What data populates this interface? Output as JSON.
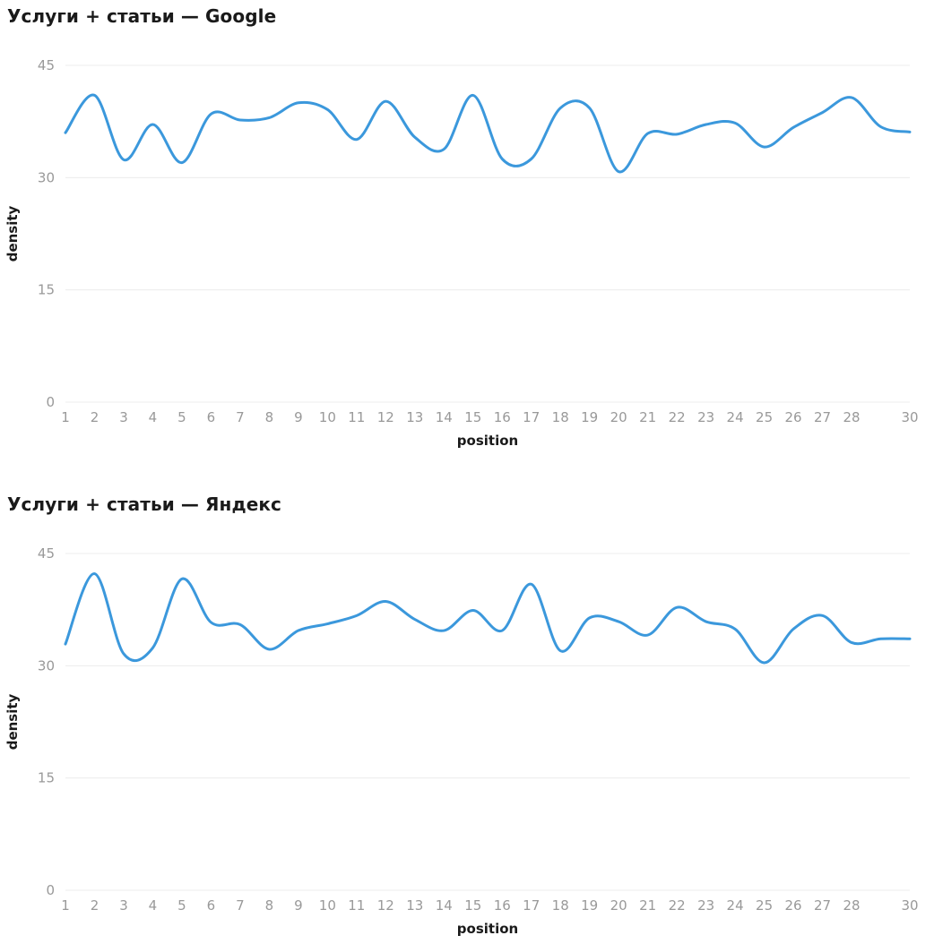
{
  "charts": [
    {
      "title": "Услуги + статьи — Google",
      "chart_data": {
        "type": "line",
        "title": "Услуги + статьи — Google",
        "xlabel": "position",
        "ylabel": "density",
        "x": [
          1,
          2,
          3,
          4,
          5,
          6,
          7,
          8,
          9,
          10,
          11,
          12,
          13,
          14,
          15,
          16,
          17,
          18,
          19,
          20,
          21,
          22,
          23,
          24,
          25,
          26,
          27,
          28,
          29,
          30
        ],
        "x_tick_labels": [
          "1",
          "2",
          "3",
          "4",
          "5",
          "6",
          "7",
          "8",
          "9",
          "10",
          "11",
          "12",
          "13",
          "14",
          "15",
          "16",
          "17",
          "18",
          "19",
          "20",
          "21",
          "22",
          "23",
          "24",
          "25",
          "26",
          "27",
          "28",
          "30"
        ],
        "x_tick_values": [
          1,
          2,
          3,
          4,
          5,
          6,
          7,
          8,
          9,
          10,
          11,
          12,
          13,
          14,
          15,
          16,
          17,
          18,
          19,
          20,
          21,
          22,
          23,
          24,
          25,
          26,
          27,
          28,
          30
        ],
        "y_ticks": [
          0,
          15,
          30,
          45
        ],
        "ylim": [
          0,
          45
        ],
        "xlim": [
          1,
          30
        ],
        "grid": true,
        "series": [
          {
            "color": "#3b98dc",
            "values": [
              36.0,
              41.0,
              32.4,
              37.1,
              32.0,
              38.5,
              37.7,
              38.0,
              40.0,
              39.1,
              35.1,
              40.2,
              35.4,
              33.8,
              41.0,
              32.5,
              32.5,
              39.3,
              39.3,
              30.8,
              35.9,
              35.8,
              37.1,
              37.3,
              34.1,
              36.7,
              38.7,
              40.7,
              36.8,
              36.1
            ]
          }
        ]
      }
    },
    {
      "title": "Услуги + статьи — Яндекс",
      "chart_data": {
        "type": "line",
        "title": "Услуги + статьи — Яндекс",
        "xlabel": "position",
        "ylabel": "density",
        "x": [
          1,
          2,
          3,
          4,
          5,
          6,
          7,
          8,
          9,
          10,
          11,
          12,
          13,
          14,
          15,
          16,
          17,
          18,
          19,
          20,
          21,
          22,
          23,
          24,
          25,
          26,
          27,
          28,
          29,
          30
        ],
        "x_tick_labels": [
          "1",
          "2",
          "3",
          "4",
          "5",
          "6",
          "7",
          "8",
          "9",
          "10",
          "11",
          "12",
          "13",
          "14",
          "15",
          "16",
          "17",
          "18",
          "19",
          "20",
          "21",
          "22",
          "23",
          "24",
          "25",
          "26",
          "27",
          "28",
          "30"
        ],
        "x_tick_values": [
          1,
          2,
          3,
          4,
          5,
          6,
          7,
          8,
          9,
          10,
          11,
          12,
          13,
          14,
          15,
          16,
          17,
          18,
          19,
          20,
          21,
          22,
          23,
          24,
          25,
          26,
          27,
          28,
          30
        ],
        "y_ticks": [
          0,
          15,
          30,
          45
        ],
        "ylim": [
          0,
          45
        ],
        "xlim": [
          1,
          30
        ],
        "grid": true,
        "series": [
          {
            "color": "#3b98dc",
            "values": [
              32.9,
              42.3,
              31.6,
              32.4,
              41.6,
              35.8,
              35.5,
              32.2,
              34.7,
              35.6,
              36.7,
              38.6,
              36.2,
              34.7,
              37.4,
              34.7,
              40.9,
              32.0,
              36.4,
              35.9,
              34.1,
              37.8,
              35.9,
              34.9,
              30.4,
              34.9,
              36.7,
              33.1,
              33.6,
              33.6
            ]
          }
        ]
      }
    }
  ]
}
